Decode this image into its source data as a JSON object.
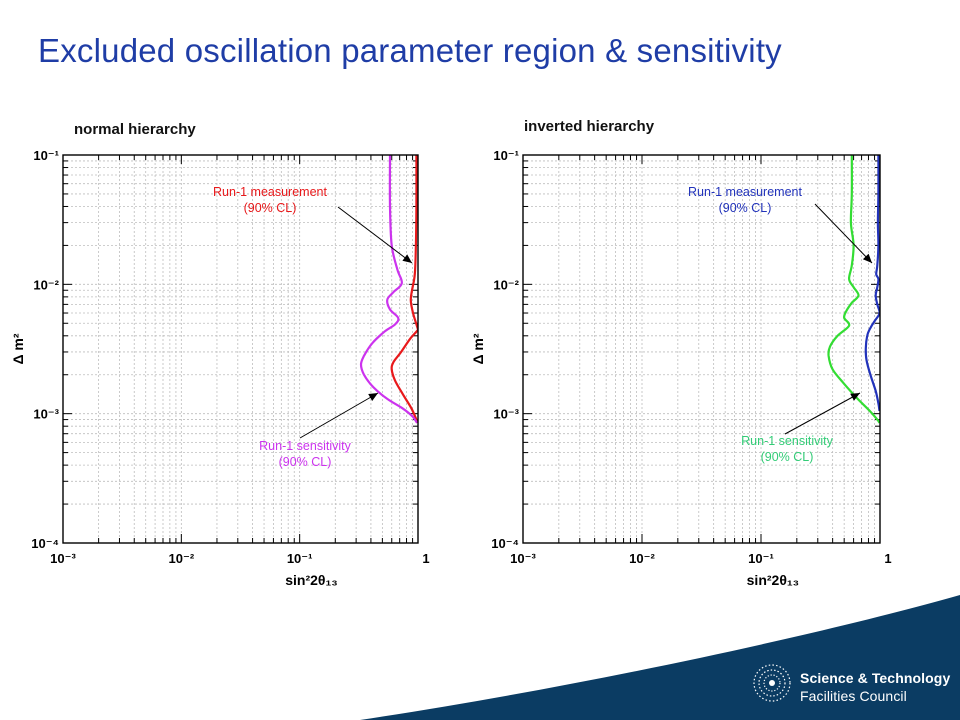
{
  "slide": {
    "title": "Excluded oscillation parameter region & sensitivity",
    "logo_line1": "Science & Technology",
    "logo_line2": "Facilities Council",
    "title_color": "#1f3da6",
    "footer_color": "#0b3c63"
  },
  "chart_data": [
    {
      "type": "line",
      "title": "normal hierarchy",
      "xlabel": "sin²2θ₁₃",
      "ylabel": "Δ m²",
      "xscale": "log",
      "yscale": "log",
      "xlim": [
        0.001,
        1
      ],
      "ylim": [
        0.0001,
        0.1
      ],
      "grid": true,
      "x_ticks": [
        "10⁻³",
        "10⁻²",
        "10⁻¹",
        "1"
      ],
      "y_ticks": [
        "10⁻⁴",
        "10⁻³",
        "10⁻²",
        "10⁻¹"
      ],
      "series": [
        {
          "name": "Run-1 measurement (90% CL)",
          "color": "#e8191b",
          "points": [
            [
              0.97,
              0.1
            ],
            [
              0.97,
              0.04
            ],
            [
              0.96,
              0.02
            ],
            [
              0.94,
              0.012
            ],
            [
              0.89,
              0.009
            ],
            [
              0.87,
              0.0075
            ],
            [
              0.9,
              0.0062
            ],
            [
              0.95,
              0.0052
            ],
            [
              0.99,
              0.0046
            ],
            [
              0.99,
              0.0044
            ],
            [
              0.86,
              0.0038
            ],
            [
              0.72,
              0.003
            ],
            [
              0.62,
              0.0025
            ],
            [
              0.6,
              0.0022
            ],
            [
              0.64,
              0.0018
            ],
            [
              0.75,
              0.0014
            ],
            [
              0.88,
              0.0011
            ],
            [
              0.97,
              0.0009
            ],
            [
              0.99,
              0.00085
            ]
          ]
        },
        {
          "name": "Run-1 sensitivity (90% CL)",
          "color": "#cc33ee",
          "points": [
            [
              0.58,
              0.1
            ],
            [
              0.58,
              0.04
            ],
            [
              0.6,
              0.02
            ],
            [
              0.67,
              0.013
            ],
            [
              0.73,
              0.0102
            ],
            [
              0.62,
              0.0087
            ],
            [
              0.55,
              0.0076
            ],
            [
              0.58,
              0.0064
            ],
            [
              0.68,
              0.0055
            ],
            [
              0.64,
              0.0049
            ],
            [
              0.52,
              0.0043
            ],
            [
              0.41,
              0.0035
            ],
            [
              0.35,
              0.0028
            ],
            [
              0.33,
              0.0024
            ],
            [
              0.35,
              0.002
            ],
            [
              0.42,
              0.0016
            ],
            [
              0.55,
              0.0013
            ],
            [
              0.74,
              0.0011
            ],
            [
              0.9,
              0.00095
            ],
            [
              0.98,
              0.00085
            ]
          ]
        }
      ],
      "annotations": [
        {
          "line1": "Run-1 measurement",
          "line2": "(90% CL)",
          "color": "#e8191b"
        },
        {
          "line1": "Run-1 sensitivity",
          "line2": "(90% CL)",
          "color": "#cc33ee"
        }
      ]
    },
    {
      "type": "line",
      "title": "inverted hierarchy",
      "xlabel": "sin²2θ₁₃",
      "ylabel": "Δ m²",
      "xscale": "log",
      "yscale": "log",
      "xlim": [
        0.001,
        1
      ],
      "ylim": [
        0.0001,
        0.1
      ],
      "grid": true,
      "x_ticks": [
        "10⁻³",
        "10⁻²",
        "10⁻¹",
        "1"
      ],
      "y_ticks": [
        "10⁻⁴",
        "10⁻³",
        "10⁻²",
        "10⁻¹"
      ],
      "series": [
        {
          "name": "Run-1 measurement (90% CL)",
          "color": "#2233bb",
          "points": [
            [
              0.97,
              0.1
            ],
            [
              0.97,
              0.05
            ],
            [
              0.96,
              0.03
            ],
            [
              0.97,
              0.02
            ],
            [
              0.95,
              0.014
            ],
            [
              0.93,
              0.012
            ],
            [
              0.97,
              0.011
            ],
            [
              0.95,
              0.0095
            ],
            [
              0.92,
              0.0082
            ],
            [
              0.95,
              0.007
            ],
            [
              0.99,
              0.0062
            ],
            [
              0.98,
              0.0058
            ],
            [
              0.9,
              0.0052
            ],
            [
              0.82,
              0.0045
            ],
            [
              0.78,
              0.004
            ],
            [
              0.76,
              0.0032
            ],
            [
              0.77,
              0.0026
            ],
            [
              0.83,
              0.002
            ],
            [
              0.92,
              0.0015
            ],
            [
              0.97,
              0.0012
            ],
            [
              0.99,
              0.00105
            ]
          ]
        },
        {
          "name": "Run-1 sensitivity (90% CL)",
          "color": "#33dd33",
          "points": [
            [
              0.58,
              0.1
            ],
            [
              0.58,
              0.05
            ],
            [
              0.57,
              0.03
            ],
            [
              0.6,
              0.02
            ],
            [
              0.58,
              0.014
            ],
            [
              0.55,
              0.011
            ],
            [
              0.6,
              0.0095
            ],
            [
              0.66,
              0.0082
            ],
            [
              0.58,
              0.0072
            ],
            [
              0.52,
              0.0062
            ],
            [
              0.5,
              0.0055
            ],
            [
              0.55,
              0.0048
            ],
            [
              0.44,
              0.004
            ],
            [
              0.38,
              0.0033
            ],
            [
              0.37,
              0.0028
            ],
            [
              0.4,
              0.0022
            ],
            [
              0.5,
              0.0017
            ],
            [
              0.65,
              0.0013
            ],
            [
              0.82,
              0.00105
            ],
            [
              0.95,
              0.0009
            ],
            [
              0.99,
              0.00085
            ]
          ]
        }
      ],
      "annotations": [
        {
          "line1": "Run-1 measurement",
          "line2": "(90% CL)",
          "color": "#2233bb"
        },
        {
          "line1": "Run-1 sensitivity",
          "line2": "(90% CL)",
          "color": "#33cc77"
        }
      ]
    }
  ]
}
